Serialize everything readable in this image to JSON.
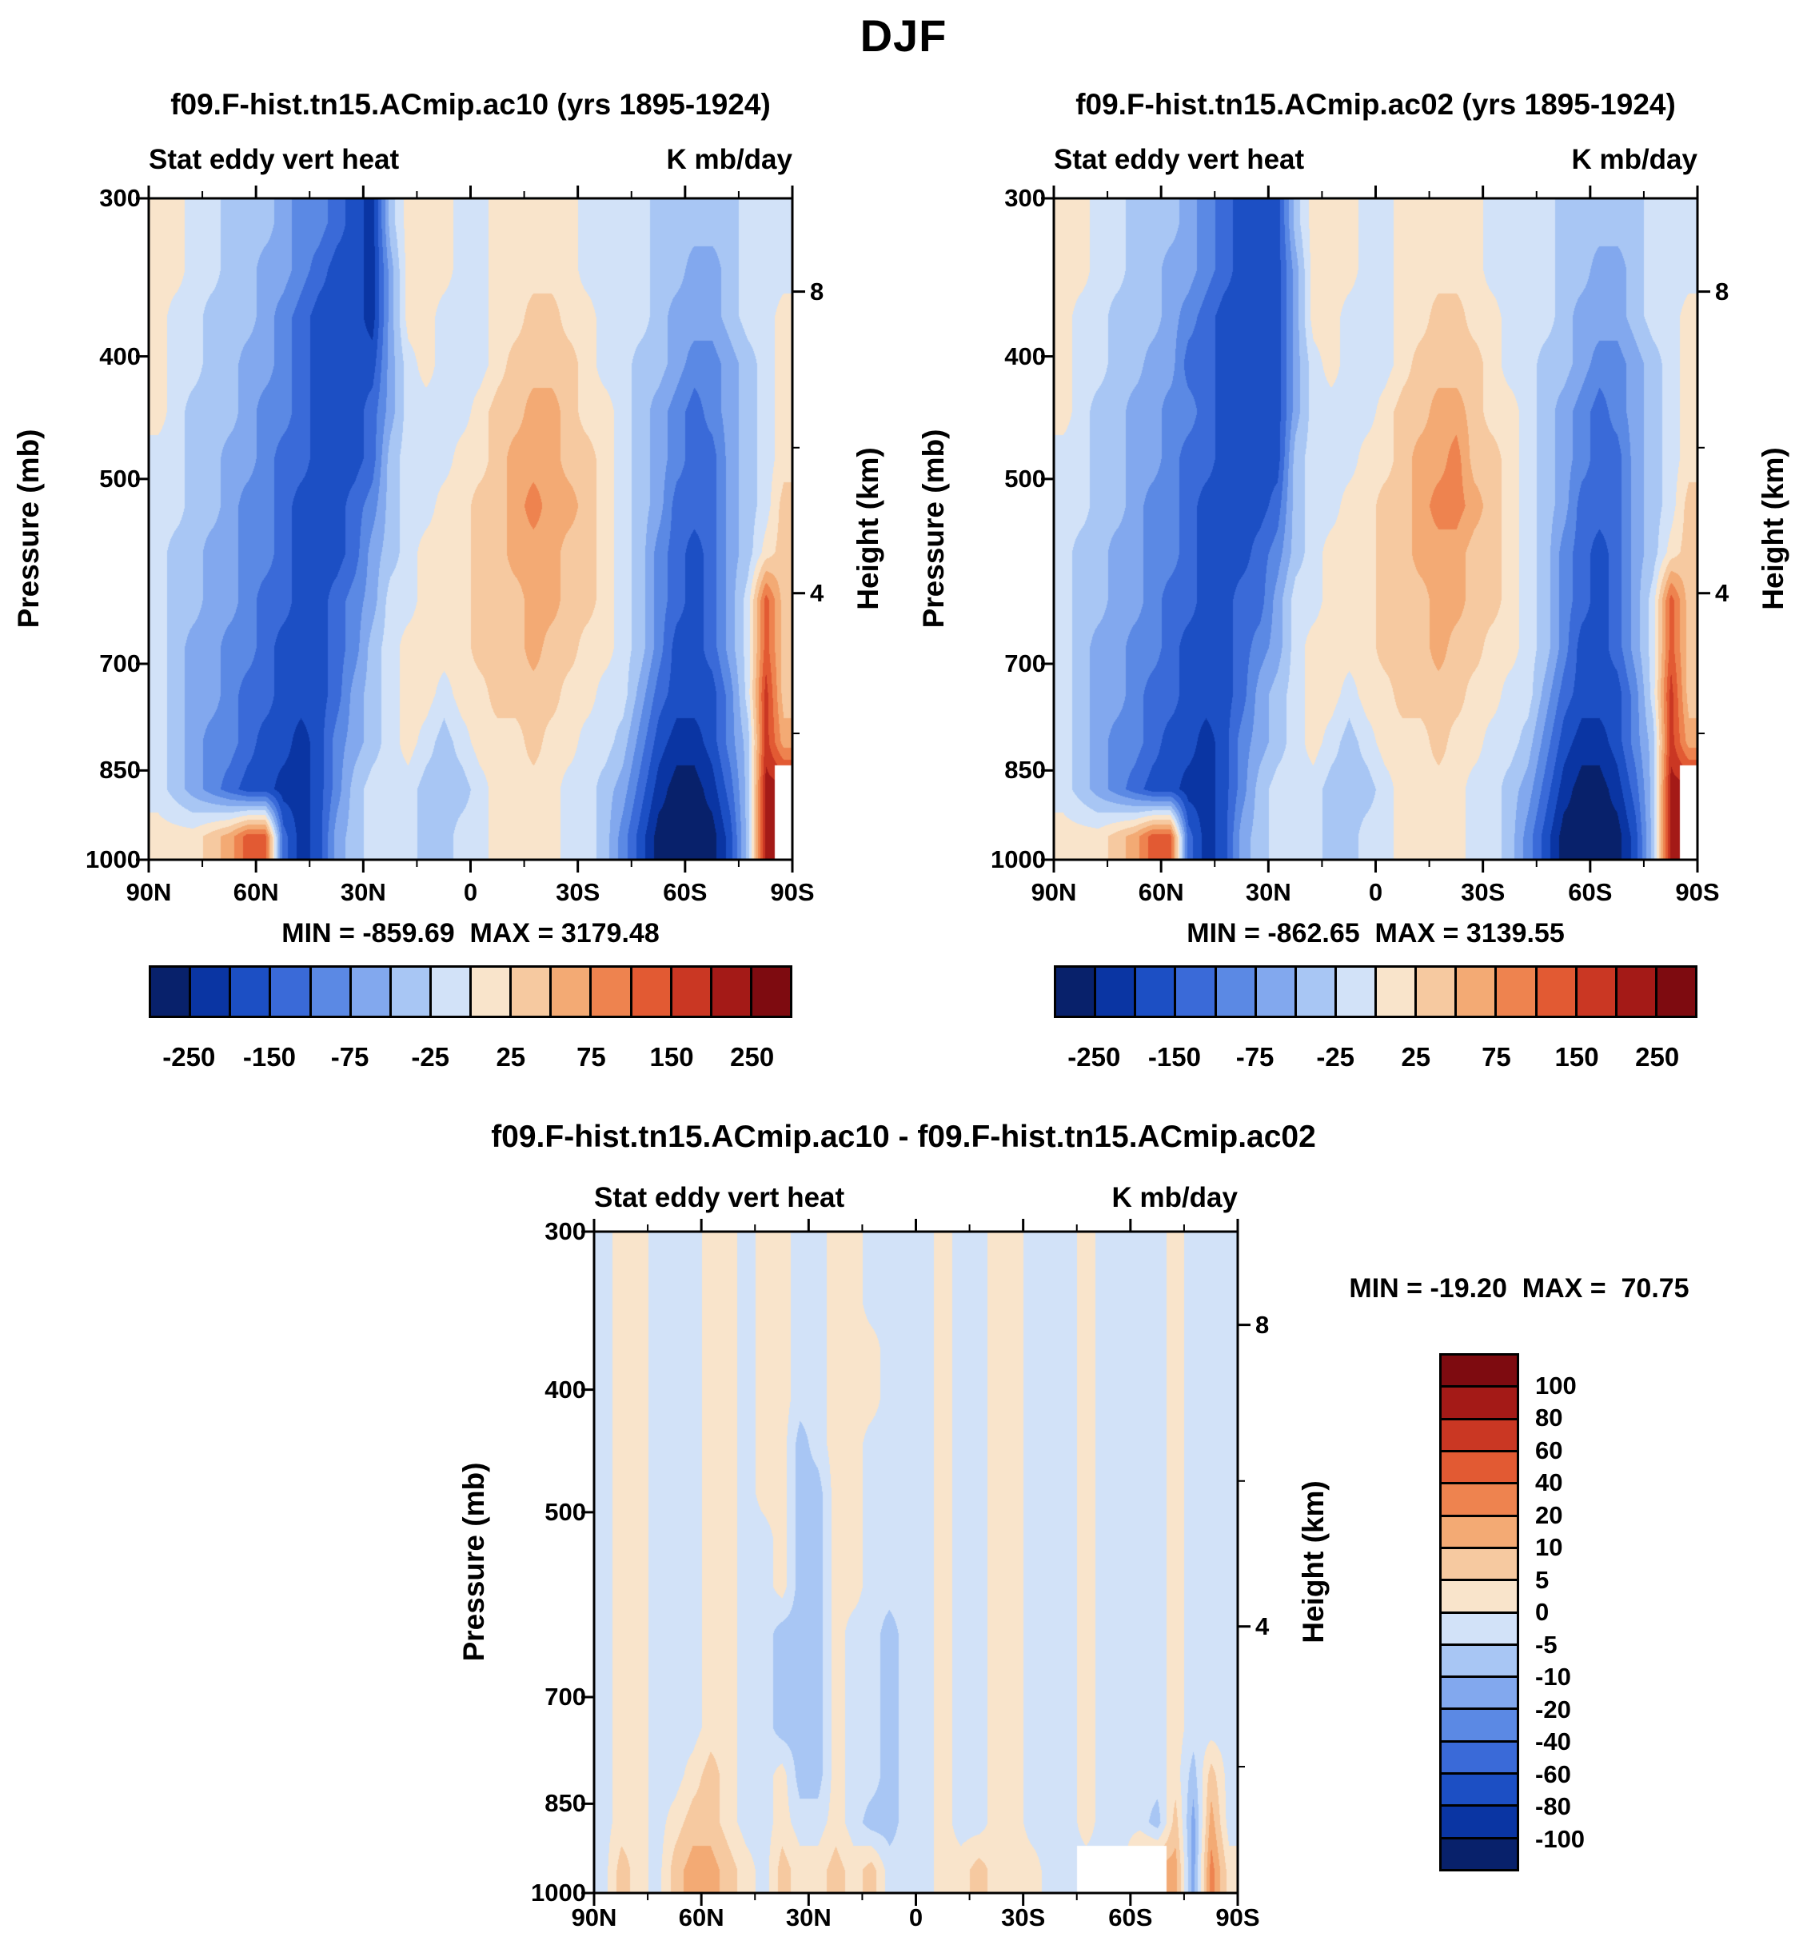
{
  "title": "DJF",
  "palette": [
    "#08216b",
    "#0a35a3",
    "#1c4fc4",
    "#3a6ad8",
    "#5b89e4",
    "#82a8ee",
    "#a8c6f4",
    "#d2e2f8",
    "#f9e4cb",
    "#f6c9a0",
    "#f3aa74",
    "#ee834f",
    "#e25a33",
    "#ca3723",
    "#a41a17",
    "#7e0b10"
  ],
  "grid_encoding": "each char = palette index 0-15 in hex, 'w' = blank/white; rows run 300mb (top) to 1000mb (bottom), cols run 90N (left) to 90S (right)",
  "axes": {
    "pressure_label": "Pressure (mb)",
    "height_label": "Height (km)",
    "pressure_ticks": [
      "300",
      "400",
      "500",
      "700",
      "850",
      "1000"
    ],
    "height_ticks": [
      "8",
      "4"
    ],
    "lat_ticks": [
      "90N",
      "60N",
      "30N",
      "0",
      "30S",
      "60S",
      "90S"
    ]
  },
  "chart_data": [
    {
      "type": "heatmap",
      "title": "f09.F-hist.tn15.ACmip.ac10 (yrs 1895-1924)",
      "field": "Stat eddy vert heat",
      "units": "K mb/day",
      "stats": "MIN = -859.69  MAX = 3179.48",
      "min": -859.69,
      "max": 3179.48,
      "x_axis": "latitude",
      "x_range": [
        "90N",
        "90S"
      ],
      "y_axis": "Pressure (mb)",
      "y_range": [
        300,
        1000
      ],
      "levels": [
        -250,
        -200,
        -150,
        -100,
        -75,
        -50,
        -25,
        0,
        25,
        50,
        75,
        100,
        150,
        200,
        250
      ],
      "colorbar_labels": [
        "-250",
        "-150",
        "-75",
        "-25",
        "25",
        "75",
        "150",
        "250"
      ],
      "colorbar_label_positions": [
        1,
        3,
        5,
        7,
        9,
        11,
        13,
        15
      ],
      "grid_rows": [
        "887766654432168887788888777766666777",
        "887766554322158887788888777766556777",
        "877666543222158877788998877765556778",
        "877665543222257877789999877665445678",
        "876665443222357777899aa9887654345678",
        "77665543322236777889aaa9987654335678",
        "77665443222346778899abaa987653335679",
        "76655443222356788899aaa9987643235689",
        "766554332234577888999aa99876432357c9",
        "765544322234678888999a998876422357c9",
        "7655433222356788788999988775322247d9",
        "7654432212456787678889887764211246da",
        "7654322112467776667888877653100136ew",
        "8889acc312567776677888877642000026ew"
      ]
    },
    {
      "type": "heatmap",
      "title": "f09.F-hist.tn15.ACmip.ac02 (yrs 1895-1924)",
      "field": "Stat eddy vert heat",
      "units": "K mb/day",
      "stats": "MIN = -862.65  MAX = 3139.55",
      "min": -862.65,
      "max": 3139.55,
      "x_axis": "latitude",
      "x_range": [
        "90N",
        "90S"
      ],
      "y_axis": "Pressure (mb)",
      "y_range": [
        300,
        1000
      ],
      "levels": [
        -250,
        -200,
        -150,
        -100,
        -75,
        -50,
        -25,
        0,
        25,
        50,
        75,
        100,
        150,
        200,
        250
      ],
      "colorbar_labels": [
        "-250",
        "-150",
        "-75",
        "-25",
        "25",
        "75",
        "150",
        "250"
      ],
      "colorbar_label_positions": [
        1,
        3,
        5,
        7,
        9,
        11,
        13,
        15
      ],
      "grid_rows": [
        "887766654322268887788888777766666777",
        "887766554322258887788888777766556777",
        "877666543222258877788998877765556778",
        "877665533222257877789999877665445678",
        "876655443222257777899aa9887654345678",
        "77665543322226777889aab9987654335678",
        "77665443222236778899abba987653335679",
        "76655443222346788899aaa9987643235689",
        "766554332233577888999aa99876432357c9",
        "765544322234578888999a998876422357c9",
        "7655433222356788788999988775322247d9",
        "7654432212456787678889887764211246da",
        "7654322112467776667888877653100136ew",
        "8889acc312567776677888877642000026ew"
      ]
    },
    {
      "type": "heatmap",
      "title": "f09.F-hist.tn15.ACmip.ac10 - f09.F-hist.tn15.ACmip.ac02",
      "field": "Stat eddy vert heat",
      "units": "K mb/day",
      "stats": "MIN = -19.20  MAX =  70.75",
      "min": -19.2,
      "max": 70.75,
      "x_axis": "latitude",
      "x_range": [
        "90N",
        "90S"
      ],
      "y_axis": "Pressure (mb)",
      "y_range": [
        300,
        1000
      ],
      "levels": [
        -100,
        -80,
        -60,
        -40,
        -20,
        -10,
        -5,
        0,
        5,
        10,
        20,
        40,
        60,
        80,
        100
      ],
      "colorbar_labels": [
        "100",
        "80",
        "60",
        "40",
        "20",
        "10",
        "5",
        "0",
        "-5",
        "-10",
        "-20",
        "-40",
        "-60",
        "-80",
        "-100"
      ],
      "colorbar_label_positions": [
        1,
        2,
        3,
        4,
        5,
        6,
        7,
        8,
        9,
        10,
        11,
        12,
        13,
        14,
        15
      ],
      "grid_rows": [
        "788777887887788777787788777877778777",
        "788777887887788777787788777877778777",
        "788777887887788877787788777877778777",
        "788777887887788877787788777877778777",
        "788777887886788777787788777877778777",
        "788777887886688777787788777877778777",
        "788777887786688777787788777877778777",
        "788777887786688777787788777877778777",
        "788777887766687767787788777877778777",
        "788777887766687767787788777877778777",
        "788777887766687767787788777877778777",
        "788778987786687767787788777877778697",
        "7887899877877876677877887778777695a7",
        "79879aa98798898977788988877wwwwwa5b8"
      ]
    }
  ]
}
